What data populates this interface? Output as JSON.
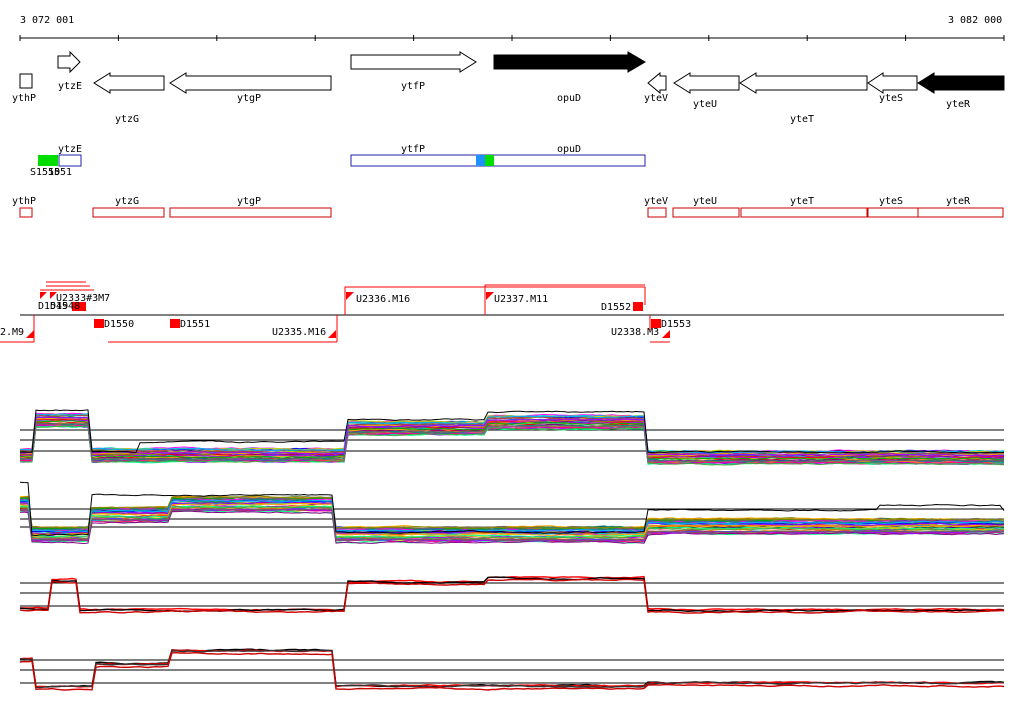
{
  "coordinates": {
    "start_label": "3 072 001",
    "end_label": "3 082 000"
  },
  "genes": [
    {
      "name": "ythP",
      "strand": "+",
      "fill": "open",
      "label_pos": "below"
    },
    {
      "name": "ytzE",
      "strand": "+",
      "fill": "open",
      "label_pos": "below"
    },
    {
      "name": "ytzG",
      "strand": "-",
      "fill": "open",
      "label_pos": "below2"
    },
    {
      "name": "ytgP",
      "strand": "-",
      "fill": "open",
      "label_pos": "below"
    },
    {
      "name": "ytfP",
      "strand": "+",
      "fill": "open",
      "label_pos": "below"
    },
    {
      "name": "opuD",
      "strand": "+",
      "fill": "filled",
      "label_pos": "below2"
    },
    {
      "name": "yteV",
      "strand": "-",
      "fill": "open",
      "label_pos": "below"
    },
    {
      "name": "yteU",
      "strand": "-",
      "fill": "open",
      "label_pos": "below"
    },
    {
      "name": "yteT",
      "strand": "-",
      "fill": "open",
      "label_pos": "below2"
    },
    {
      "name": "yteS",
      "strand": "-",
      "fill": "open",
      "label_pos": "below"
    },
    {
      "name": "yteR",
      "strand": "-",
      "fill": "filled",
      "label_pos": "below"
    }
  ],
  "blue_track": {
    "labels": [
      "ytzE",
      "ytfP",
      "opuD",
      "S1550",
      "1551"
    ],
    "colors": {
      "box": "#2222aa",
      "green": "#00dd00",
      "blue": "#1e90ff"
    }
  },
  "red_track": {
    "labels": [
      "ythP",
      "ytzG",
      "ytgP",
      "yteV",
      "yteU",
      "yteT",
      "yteS",
      "yteR"
    ],
    "color": "#cc0000"
  },
  "features": {
    "labels": [
      "U2336.M16",
      "U2337.M11",
      "D1552",
      "D1550",
      "D1551",
      "U2335.M16",
      "U2338.M3",
      "D1553",
      "2.M9",
      "U2333#3M7",
      "D1549",
      "D1548"
    ],
    "marker_color": "#ff0000"
  },
  "profiles": {
    "panels": 4,
    "panel_1": "multicolor expression traces — high over ytzE, ytfP, opuD",
    "panel_2": "multicolor expression traces — high over ytzG, ytgP",
    "panel_3": "summary traces (black, red)",
    "panel_4": "summary traces (black, red)"
  }
}
